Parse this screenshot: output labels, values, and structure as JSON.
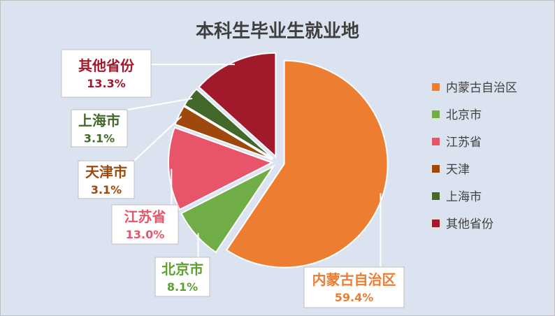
{
  "chart_data": {
    "type": "pie",
    "title": "本科生毕业生就业地",
    "categories": [
      "内蒙古自治区",
      "北京市",
      "江苏省",
      "天津",
      "上海市",
      "其他省份"
    ],
    "callout_names": [
      "内蒙古自治区",
      "北京市",
      "江苏省",
      "天津市",
      "上海市",
      "其他省份"
    ],
    "values": [
      59.4,
      8.1,
      13.0,
      3.1,
      3.1,
      13.3
    ],
    "value_labels": [
      "59.4%",
      "8.1%",
      "13.0%",
      "3.1%",
      "3.1%",
      "13.3%"
    ],
    "colors": [
      "#ED7D31",
      "#70AD47",
      "#E8556A",
      "#9E480E",
      "#43682B",
      "#A01A2C"
    ],
    "label_colors": [
      "#ED7D31",
      "#5FA033",
      "#E8556A",
      "#9E480E",
      "#43682B",
      "#A01A2C"
    ],
    "exploded": true,
    "legend_position": "right"
  },
  "colors": {
    "background": "#DCE3F0",
    "title": "#3F3F3F",
    "legend_text": "#404040",
    "callout_border": "#BFBFBF"
  }
}
